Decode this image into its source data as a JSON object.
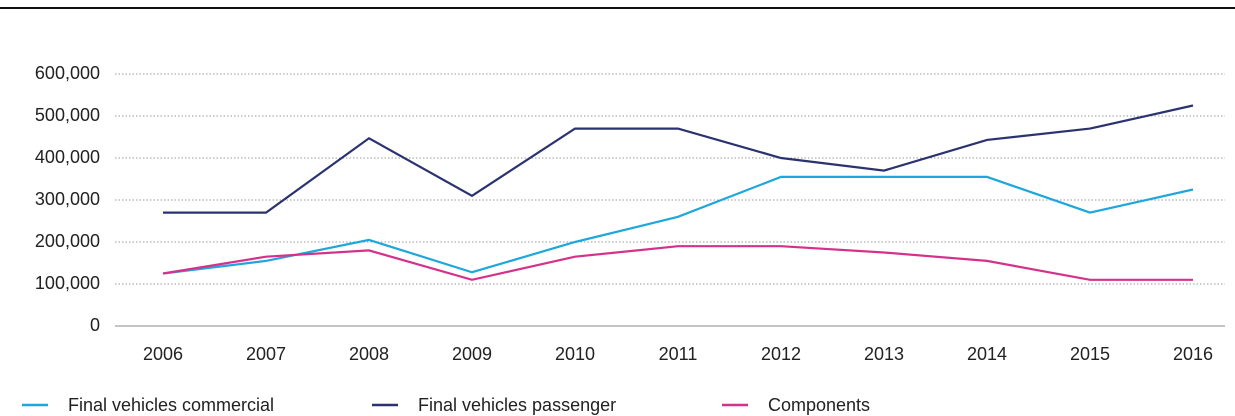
{
  "chart_data": {
    "type": "line",
    "categories": [
      "2006",
      "2007",
      "2008",
      "2009",
      "2010",
      "2011",
      "2012",
      "2013",
      "2014",
      "2015",
      "2016"
    ],
    "series": [
      {
        "name": "Final vehicles commercial",
        "color": "#1ea7dc",
        "values": [
          125000,
          155000,
          205000,
          128000,
          200000,
          260000,
          355000,
          355000,
          355000,
          270000,
          325000
        ]
      },
      {
        "name": "Final vehicles passenger",
        "color": "#2a3370",
        "values": [
          270000,
          270000,
          447000,
          310000,
          470000,
          470000,
          400000,
          370000,
          443000,
          470000,
          525000
        ]
      },
      {
        "name": "Components",
        "color": "#d6318a",
        "values": [
          125000,
          165000,
          180000,
          110000,
          165000,
          190000,
          190000,
          175000,
          155000,
          110000,
          110000
        ]
      }
    ],
    "ylim": [
      0,
      600000
    ],
    "yticks": [
      0,
      {
        "value": 100000,
        "label": "100,000"
      },
      {
        "value": 200000,
        "label": "200,000"
      },
      {
        "value": 300000,
        "label": "300,000"
      },
      {
        "value": 400000,
        "label": "400,000"
      },
      {
        "value": 500000,
        "label": "500,000"
      },
      {
        "value": 600000,
        "label": "600,000"
      }
    ],
    "grid": true
  }
}
